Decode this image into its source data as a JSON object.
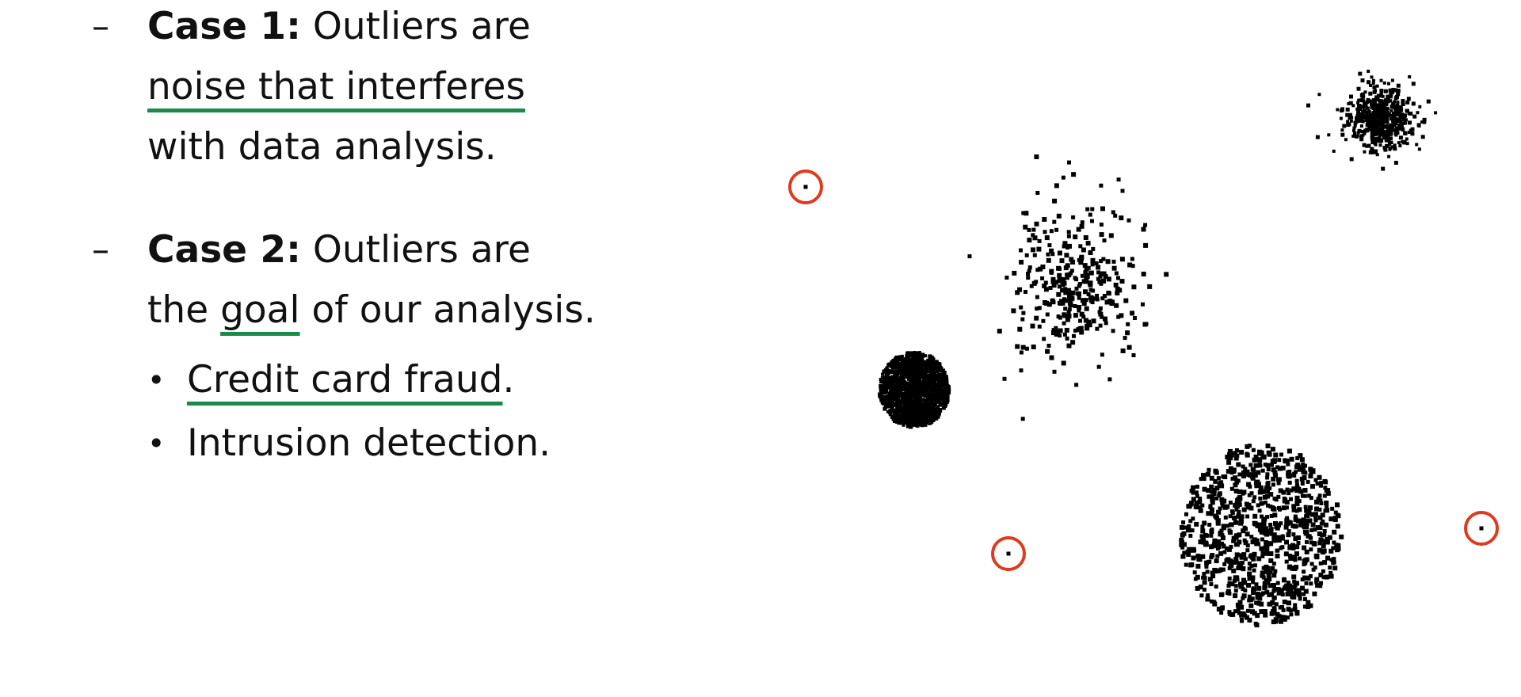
{
  "case1": {
    "dash": "–",
    "label": "Case 1:",
    "line1_rest": " Outliers are",
    "line2": "noise that interferes",
    "line3": "with data analysis."
  },
  "case2": {
    "dash": "–",
    "label": "Case 2:",
    "line1_rest": " Outliers are",
    "line2_pre": "the ",
    "line2_goal": "goal",
    "line2_post": " of our analysis.",
    "bullets": [
      {
        "marker": "•",
        "underlined": "Credit card fraud",
        "rest": "."
      },
      {
        "marker": "•",
        "underlined": "",
        "rest": "Intrusion detection."
      }
    ]
  },
  "colors": {
    "underline": "#1a8a4a",
    "outlier_circle": "#e03a1e",
    "points": "#000000"
  }
}
